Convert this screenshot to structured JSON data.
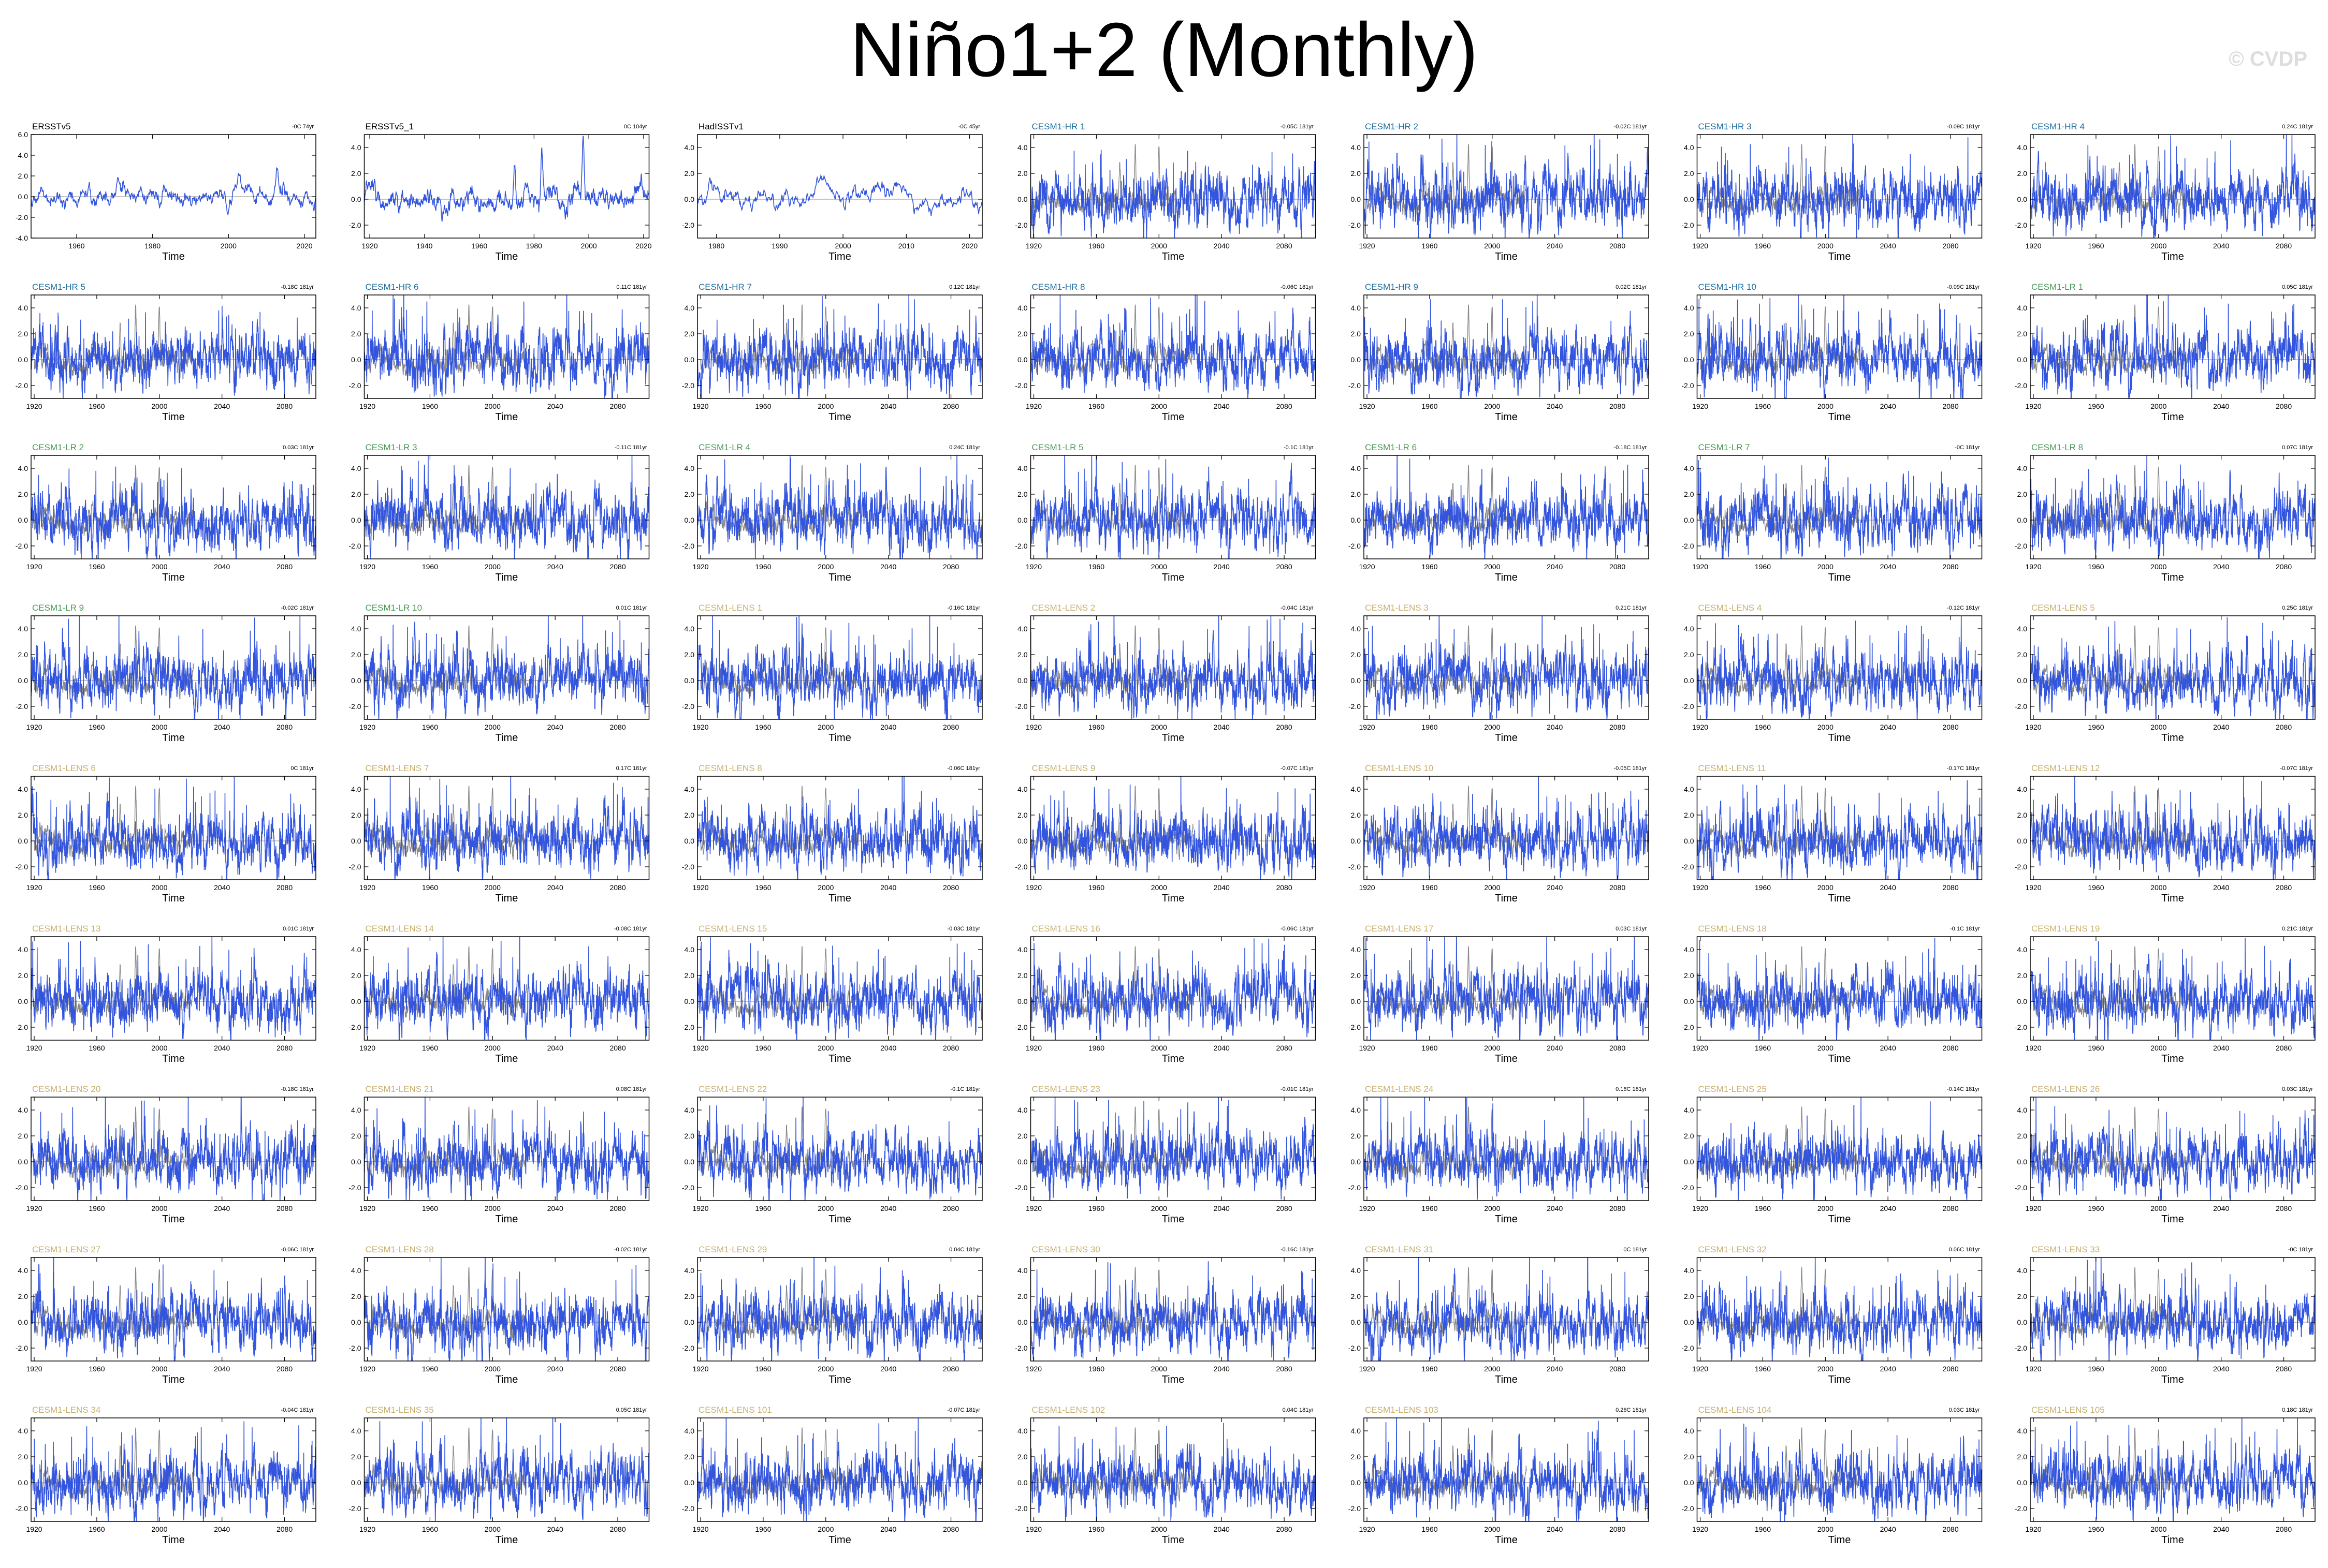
{
  "page": {
    "title": "Niño1+2 (Monthly)",
    "watermark": "© CVDP"
  },
  "colors": {
    "series": "#3355dd",
    "observation_overlay": "#8a8a8a",
    "obs_title": "#000000",
    "cesm1_hr": "#1f6fa0",
    "cesm1_lr": "#4a9a58",
    "cesm1_lens": "#c8b070"
  },
  "chart_data": {
    "type": "line",
    "title": "Niño1+2 (Monthly)",
    "grid": false,
    "xlabel": "Time",
    "panels": [
      {
        "name": "ERSSTv5",
        "trend": "-0C 74yr",
        "group": "obs",
        "xlim": [
          1948,
          2023
        ],
        "xticks": [
          "1960",
          "1980",
          "2000",
          "2020"
        ],
        "ylim": [
          -4,
          6
        ],
        "yticks": [
          "-4.0",
          "-2.0",
          "0.0",
          "2.0",
          "4.0",
          "6.0"
        ]
      },
      {
        "name": "ERSSTv5_1",
        "trend": "0C 104yr",
        "group": "obs",
        "xlim": [
          1918,
          2022
        ],
        "xticks": [
          "1920",
          "1940",
          "1960",
          "1980",
          "2000",
          "2020"
        ],
        "ylim": [
          -3,
          5
        ],
        "yticks": [
          "-2.0",
          "0.0",
          "2.0",
          "4.0"
        ]
      },
      {
        "name": "HadISSTv1",
        "trend": "-0C 45yr",
        "group": "obs",
        "xlim": [
          1977,
          2022
        ],
        "xticks": [
          "1980",
          "1990",
          "2000",
          "2010",
          "2020"
        ],
        "ylim": [
          -3,
          5
        ],
        "yticks": [
          "-2.0",
          "0.0",
          "2.0",
          "4.0"
        ]
      },
      {
        "name": "CESM1-HR 1",
        "trend": "-0.05C 181yr",
        "group": "hr"
      },
      {
        "name": "CESM1-HR 2",
        "trend": "-0.02C 181yr",
        "group": "hr"
      },
      {
        "name": "CESM1-HR 3",
        "trend": "-0.09C 181yr",
        "group": "hr"
      },
      {
        "name": "CESM1-HR 4",
        "trend": "0.24C 181yr",
        "group": "hr"
      },
      {
        "name": "CESM1-HR 5",
        "trend": "-0.18C 181yr",
        "group": "hr"
      },
      {
        "name": "CESM1-HR 6",
        "trend": "0.11C 181yr",
        "group": "hr"
      },
      {
        "name": "CESM1-HR 7",
        "trend": "0.12C 181yr",
        "group": "hr"
      },
      {
        "name": "CESM1-HR 8",
        "trend": "-0.06C 181yr",
        "group": "hr"
      },
      {
        "name": "CESM1-HR 9",
        "trend": "0.02C 181yr",
        "group": "hr"
      },
      {
        "name": "CESM1-HR 10",
        "trend": "-0.09C 181yr",
        "group": "hr"
      },
      {
        "name": "CESM1-LR 1",
        "trend": "0.05C 181yr",
        "group": "lr"
      },
      {
        "name": "CESM1-LR 2",
        "trend": "0.03C 181yr",
        "group": "lr"
      },
      {
        "name": "CESM1-LR 3",
        "trend": "-0.11C 181yr",
        "group": "lr"
      },
      {
        "name": "CESM1-LR 4",
        "trend": "0.24C 181yr",
        "group": "lr"
      },
      {
        "name": "CESM1-LR 5",
        "trend": "-0.1C 181yr",
        "group": "lr"
      },
      {
        "name": "CESM1-LR 6",
        "trend": "-0.18C 181yr",
        "group": "lr"
      },
      {
        "name": "CESM1-LR 7",
        "trend": "-0C 181yr",
        "group": "lr"
      },
      {
        "name": "CESM1-LR 8",
        "trend": "0.07C 181yr",
        "group": "lr"
      },
      {
        "name": "CESM1-LR 9",
        "trend": "-0.02C 181yr",
        "group": "lr"
      },
      {
        "name": "CESM1-LR 10",
        "trend": "0.01C 181yr",
        "group": "lr"
      },
      {
        "name": "CESM1-LENS 1",
        "trend": "-0.16C 181yr",
        "group": "lens"
      },
      {
        "name": "CESM1-LENS 2",
        "trend": "-0.04C 181yr",
        "group": "lens"
      },
      {
        "name": "CESM1-LENS 3",
        "trend": "0.21C 181yr",
        "group": "lens"
      },
      {
        "name": "CESM1-LENS 4",
        "trend": "-0.12C 181yr",
        "group": "lens"
      },
      {
        "name": "CESM1-LENS 5",
        "trend": "0.25C 181yr",
        "group": "lens"
      },
      {
        "name": "CESM1-LENS 6",
        "trend": "0C 181yr",
        "group": "lens"
      },
      {
        "name": "CESM1-LENS 7",
        "trend": "0.17C 181yr",
        "group": "lens"
      },
      {
        "name": "CESM1-LENS 8",
        "trend": "-0.06C 181yr",
        "group": "lens"
      },
      {
        "name": "CESM1-LENS 9",
        "trend": "-0.07C 181yr",
        "group": "lens"
      },
      {
        "name": "CESM1-LENS 10",
        "trend": "-0.05C 181yr",
        "group": "lens"
      },
      {
        "name": "CESM1-LENS 11",
        "trend": "-0.17C 181yr",
        "group": "lens"
      },
      {
        "name": "CESM1-LENS 12",
        "trend": "-0.07C 181yr",
        "group": "lens"
      },
      {
        "name": "CESM1-LENS 13",
        "trend": "0.01C 181yr",
        "group": "lens"
      },
      {
        "name": "CESM1-LENS 14",
        "trend": "-0.08C 181yr",
        "group": "lens"
      },
      {
        "name": "CESM1-LENS 15",
        "trend": "-0.03C 181yr",
        "group": "lens"
      },
      {
        "name": "CESM1-LENS 16",
        "trend": "-0.06C 181yr",
        "group": "lens"
      },
      {
        "name": "CESM1-LENS 17",
        "trend": "0.03C 181yr",
        "group": "lens"
      },
      {
        "name": "CESM1-LENS 18",
        "trend": "-0.1C 181yr",
        "group": "lens"
      },
      {
        "name": "CESM1-LENS 19",
        "trend": "0.21C 181yr",
        "group": "lens"
      },
      {
        "name": "CESM1-LENS 20",
        "trend": "-0.18C 181yr",
        "group": "lens"
      },
      {
        "name": "CESM1-LENS 21",
        "trend": "0.08C 181yr",
        "group": "lens"
      },
      {
        "name": "CESM1-LENS 22",
        "trend": "-0.1C 181yr",
        "group": "lens"
      },
      {
        "name": "CESM1-LENS 23",
        "trend": "-0.01C 181yr",
        "group": "lens"
      },
      {
        "name": "CESM1-LENS 24",
        "trend": "0.16C 181yr",
        "group": "lens"
      },
      {
        "name": "CESM1-LENS 25",
        "trend": "-0.14C 181yr",
        "group": "lens"
      },
      {
        "name": "CESM1-LENS 26",
        "trend": "0.03C 181yr",
        "group": "lens"
      },
      {
        "name": "CESM1-LENS 27",
        "trend": "-0.06C 181yr",
        "group": "lens"
      },
      {
        "name": "CESM1-LENS 28",
        "trend": "-0.02C 181yr",
        "group": "lens"
      },
      {
        "name": "CESM1-LENS 29",
        "trend": "0.04C 181yr",
        "group": "lens"
      },
      {
        "name": "CESM1-LENS 30",
        "trend": "-0.16C 181yr",
        "group": "lens"
      },
      {
        "name": "CESM1-LENS 31",
        "trend": "0C 181yr",
        "group": "lens"
      },
      {
        "name": "CESM1-LENS 32",
        "trend": "0.06C 181yr",
        "group": "lens"
      },
      {
        "name": "CESM1-LENS 33",
        "trend": "-0C 181yr",
        "group": "lens"
      },
      {
        "name": "CESM1-LENS 34",
        "trend": "-0.04C 181yr",
        "group": "lens"
      },
      {
        "name": "CESM1-LENS 35",
        "trend": "0.05C 181yr",
        "group": "lens"
      },
      {
        "name": "CESM1-LENS 101",
        "trend": "-0.07C 181yr",
        "group": "lens"
      },
      {
        "name": "CESM1-LENS 102",
        "trend": "0.04C 181yr",
        "group": "lens"
      },
      {
        "name": "CESM1-LENS 103",
        "trend": "0.26C 181yr",
        "group": "lens"
      },
      {
        "name": "CESM1-LENS 104",
        "trend": "0.03C 181yr",
        "group": "lens"
      },
      {
        "name": "CESM1-LENS 105",
        "trend": "0.18C 181yr",
        "group": "lens"
      }
    ],
    "model_defaults": {
      "xlim": [
        1918,
        2100
      ],
      "xticks": [
        "1920",
        "1960",
        "2000",
        "2040",
        "2080"
      ],
      "ylim": [
        -3,
        5
      ],
      "yticks": [
        "-2.0",
        "0.0",
        "2.0",
        "4.0"
      ],
      "overlay_observations": true
    }
  }
}
